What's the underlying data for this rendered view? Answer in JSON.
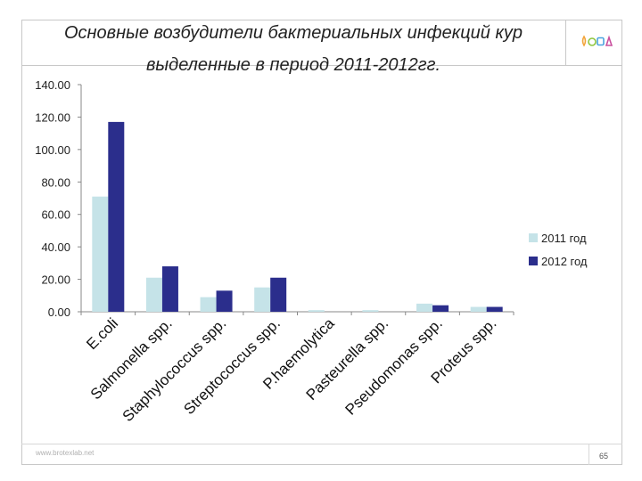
{
  "slide": {
    "title_line1": "Основные возбудители бактериальных инфекций кур",
    "title_line2": "выделенные  в период 2011-2012гг.",
    "footer_url": "www.brotexlab.net",
    "page_number": "65"
  },
  "logo": {
    "colors": [
      "#f2a43a",
      "#8fc63f",
      "#4aa3df",
      "#c9509e"
    ]
  },
  "chart_data": {
    "type": "bar",
    "categories": [
      "E.coli",
      "Salmonella spp.",
      "Staphylococcus spp.",
      "Streptococcus spp.",
      "P.haemolytica",
      "Pasteurella spp.",
      "Pseudomonas spp.",
      "Proteus spp."
    ],
    "series": [
      {
        "name": "2011 год",
        "color": "#c5e3e8",
        "values": [
          71,
          21,
          9,
          15,
          1,
          1,
          5,
          3
        ]
      },
      {
        "name": "2012 год",
        "color": "#2b2e8c",
        "values": [
          117,
          28,
          13,
          21,
          0,
          0,
          4,
          3
        ]
      }
    ],
    "ylim": [
      0,
      140
    ],
    "yticks": [
      "0.00",
      "20.00",
      "40.00",
      "60.00",
      "80.00",
      "100.00",
      "120.00",
      "140.00"
    ],
    "grid": false,
    "legend_position": "right"
  }
}
